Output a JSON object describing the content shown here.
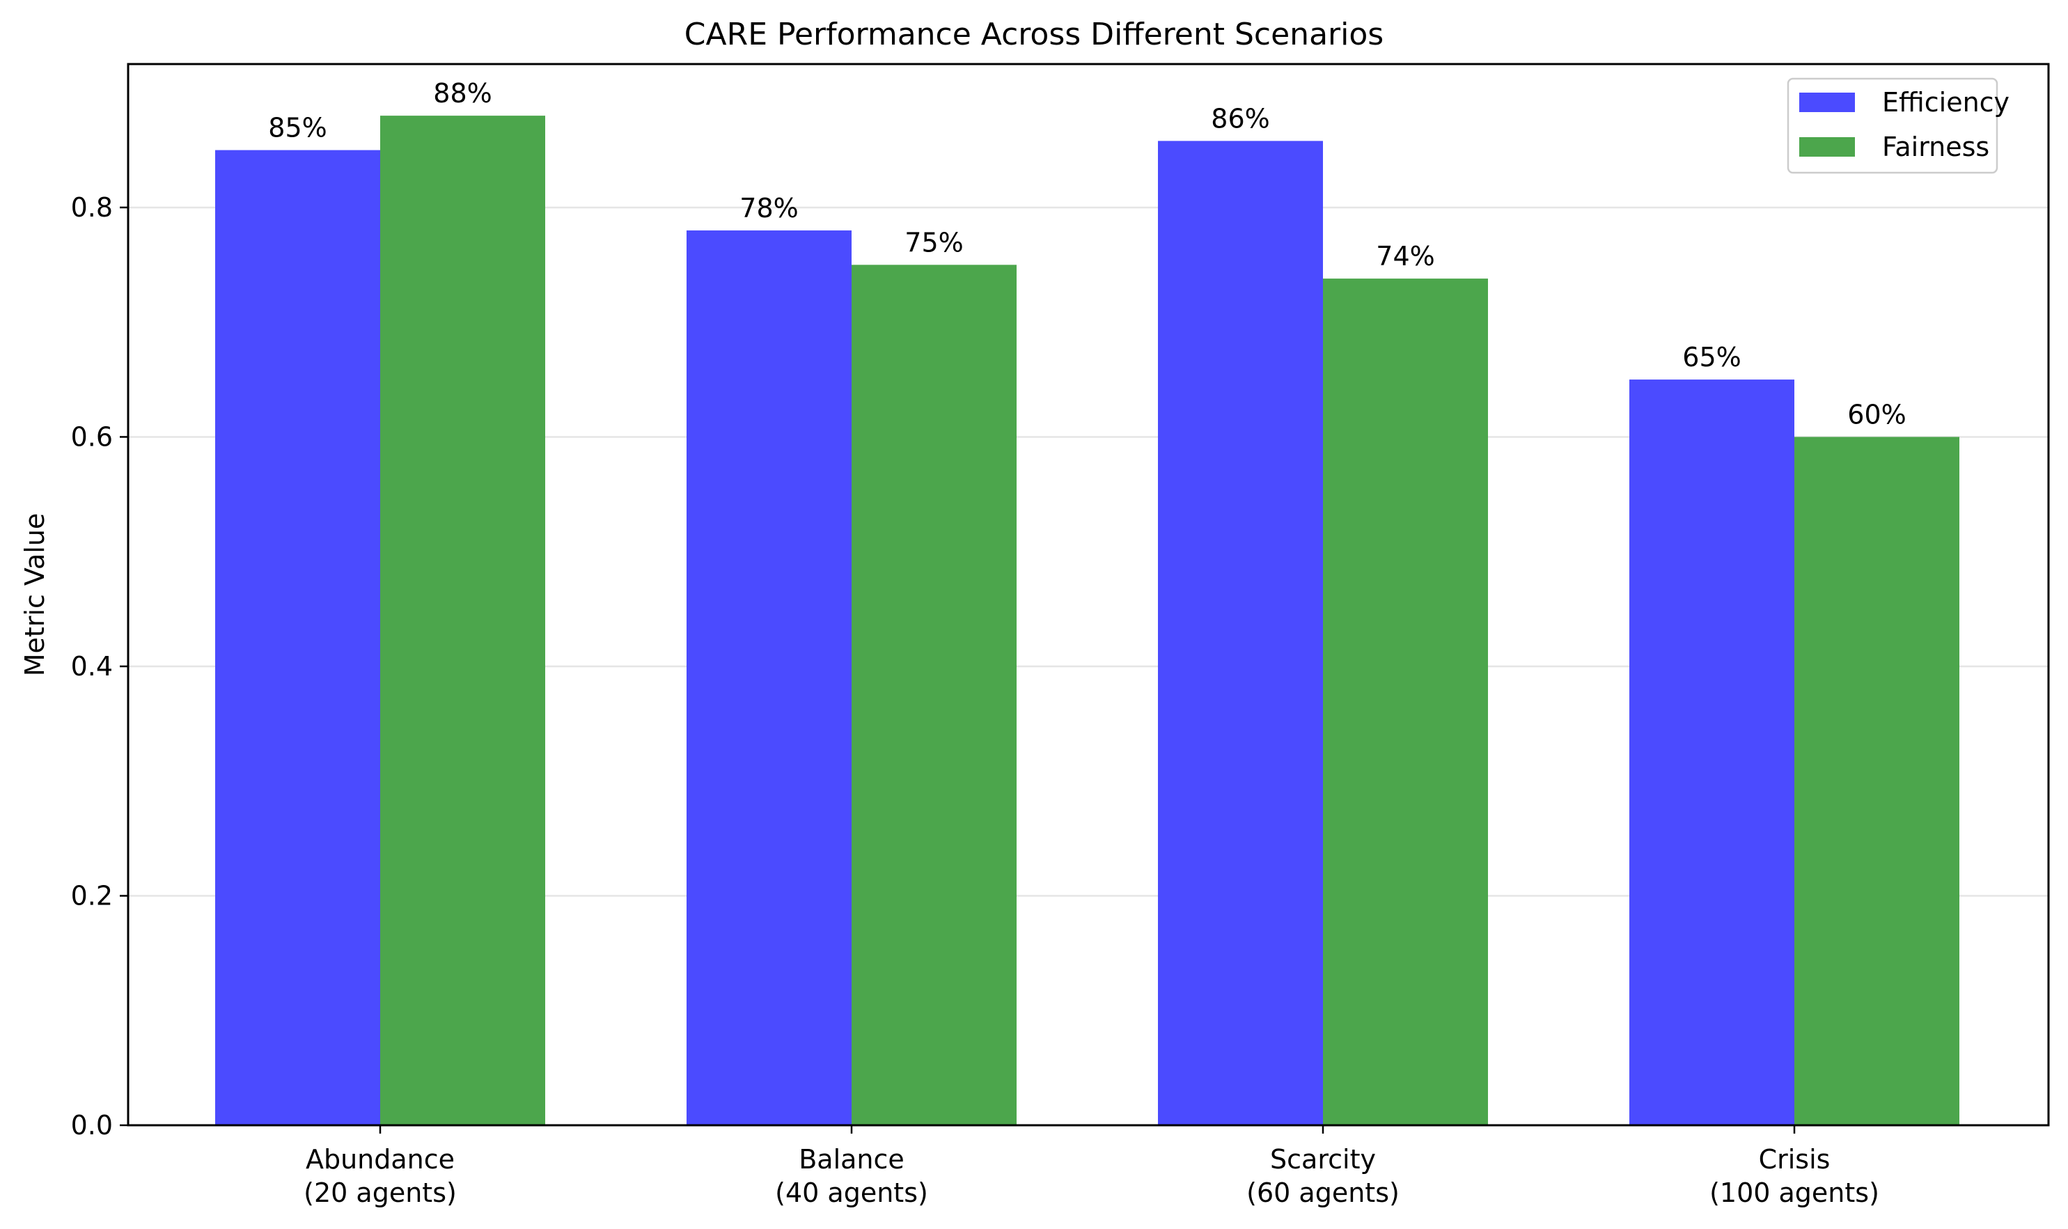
{
  "chart_data": {
    "type": "bar",
    "title": "CARE Performance Across Different Scenarios",
    "xlabel": "",
    "ylabel": "Metric Value",
    "categories": [
      [
        "Abundance",
        "(20 agents)"
      ],
      [
        "Balance",
        "(40 agents)"
      ],
      [
        "Scarcity",
        "(60 agents)"
      ],
      [
        "Crisis",
        "(100 agents)"
      ]
    ],
    "series": [
      {
        "name": "Efficiency",
        "color": "#4B4BFF",
        "values": [
          0.85,
          0.78,
          0.858,
          0.65
        ],
        "labels": [
          "85%",
          "78%",
          "86%",
          "65%"
        ]
      },
      {
        "name": "Fairness",
        "color": "#4CA64C",
        "values": [
          0.88,
          0.75,
          0.738,
          0.6
        ],
        "labels": [
          "88%",
          "75%",
          "74%",
          "60%"
        ]
      }
    ],
    "ylim": [
      0,
      0.925
    ],
    "yticks": [
      0.0,
      0.2,
      0.4,
      0.6,
      0.8
    ],
    "ytick_labels": [
      "0.0",
      "0.2",
      "0.4",
      "0.6",
      "0.8"
    ],
    "grid": "horizontal",
    "legend_position": "top-right"
  }
}
